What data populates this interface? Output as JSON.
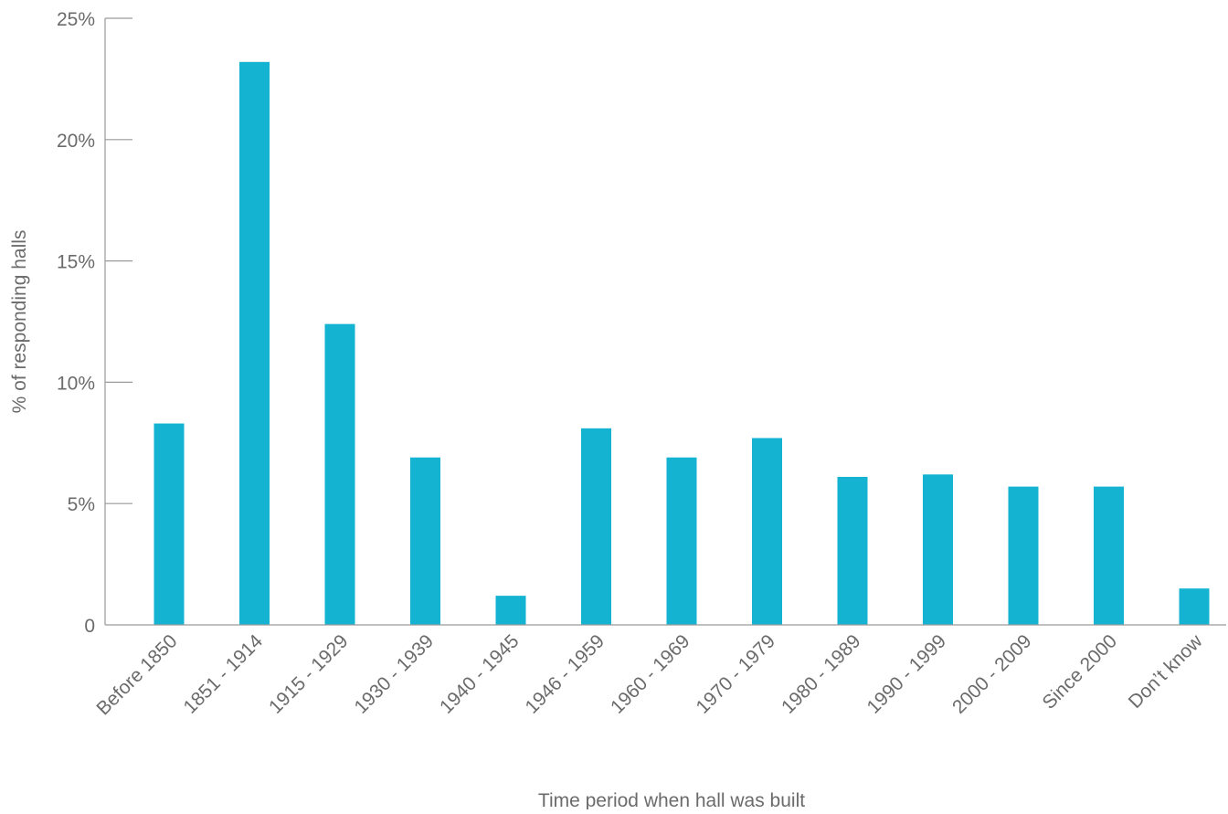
{
  "chart_data": {
    "type": "bar",
    "title": "",
    "xlabel": "Time period when hall was built",
    "ylabel": "% of responding halls",
    "ylim": [
      0,
      25
    ],
    "yticks": [
      {
        "value": 0,
        "label": "0"
      },
      {
        "value": 5,
        "label": "5%"
      },
      {
        "value": 10,
        "label": "10%"
      },
      {
        "value": 15,
        "label": "15%"
      },
      {
        "value": 20,
        "label": "20%"
      },
      {
        "value": 25,
        "label": "25%"
      }
    ],
    "categories": [
      "Before 1850",
      "1851 - 1914",
      "1915 - 1929",
      "1930 - 1939",
      "1940 - 1945",
      "1946 - 1959",
      "1960 - 1969",
      "1970 - 1979",
      "1980 - 1989",
      "1990 - 1999",
      "2000 - 2009",
      "Since 2000",
      "Don’t know"
    ],
    "values": [
      8.3,
      23.2,
      12.4,
      6.9,
      1.2,
      8.1,
      6.9,
      7.7,
      6.1,
      6.2,
      5.7,
      5.7,
      1.5
    ],
    "bar_color": "#14b3d1",
    "axis_color": "#9a9a9a",
    "grid": false,
    "legend": "none"
  }
}
